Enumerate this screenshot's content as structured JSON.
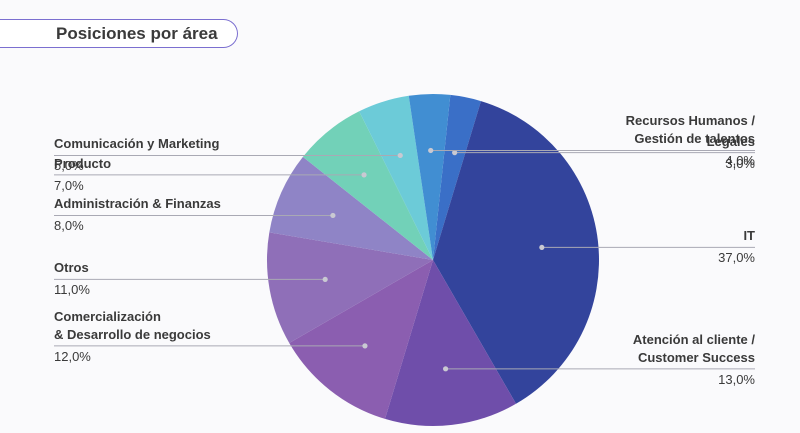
{
  "title": "Posiciones por área",
  "chart_data": {
    "type": "pie",
    "title": "Posiciones por área",
    "slices": [
      {
        "label": "Legales",
        "value": 3.0,
        "display": "3,0%",
        "color": "#3a6fc7",
        "side": "right"
      },
      {
        "label": "IT",
        "value": 37.0,
        "display": "37,0%",
        "color": "#33449c",
        "side": "right"
      },
      {
        "label": "Atención al cliente /\nCustomer Success",
        "value": 13.0,
        "display": "13,0%",
        "color": "#6f4eaa",
        "side": "right"
      },
      {
        "label": "Comercialización\n& Desarrollo de negocios",
        "value": 12.0,
        "display": "12,0%",
        "color": "#8b5eb0",
        "side": "left"
      },
      {
        "label": "Otros",
        "value": 11.0,
        "display": "11,0%",
        "color": "#8f6fb8",
        "side": "left"
      },
      {
        "label": "Administración & Finanzas",
        "value": 8.0,
        "display": "8,0%",
        "color": "#8f84c6",
        "side": "left"
      },
      {
        "label": "Producto",
        "value": 7.0,
        "display": "7,0%",
        "color": "#72d1b8",
        "side": "left"
      },
      {
        "label": "Comunicación y Marketing",
        "value": 5.0,
        "display": "5,0%",
        "color": "#6ccbd8",
        "side": "left"
      },
      {
        "label": "Recursos Humanos /\nGestión de talentos",
        "value": 4.0,
        "display": "4,0%",
        "color": "#418ed2",
        "side": "right"
      }
    ],
    "legend": "none"
  }
}
